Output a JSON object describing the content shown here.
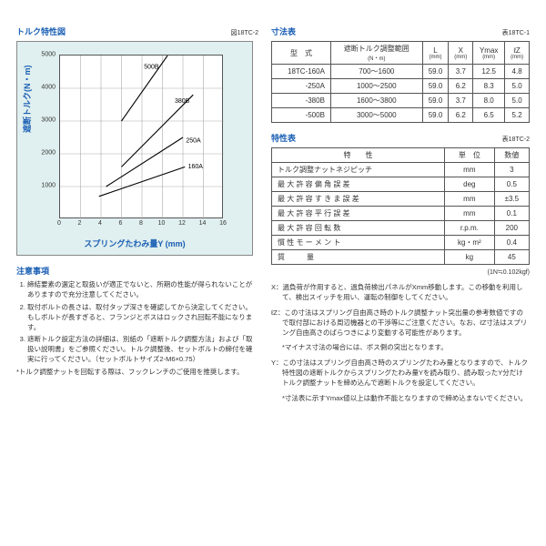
{
  "left": {
    "chart_title": "トルク特性図",
    "chart_tag": "図18TC-2",
    "ylabel": "遮断トルク(N・m)",
    "xlabel": "スプリングたわみ量Y (mm)",
    "plot": {
      "bg": "#e0efef",
      "grid_color": "#aaaaaa",
      "xlim": [
        0,
        16
      ],
      "xtick_step": 2,
      "ylim": [
        0,
        5000
      ],
      "ytick_step": 1000,
      "series": [
        {
          "label": "500B",
          "x1": 6.0,
          "y1": 3000,
          "x2": 10.5,
          "y2": 5000,
          "lx": 8.2,
          "ly": 4600
        },
        {
          "label": "380B",
          "x1": 6.0,
          "y1": 1600,
          "x2": 13.0,
          "y2": 3800,
          "lx": 11.2,
          "ly": 3550
        },
        {
          "label": "250A",
          "x1": 4.5,
          "y1": 1000,
          "x2": 12.0,
          "y2": 2500,
          "lx": 12.3,
          "ly": 2350
        },
        {
          "label": "160A",
          "x1": 3.8,
          "y1": 700,
          "x2": 12.2,
          "y2": 1600,
          "lx": 12.5,
          "ly": 1550
        }
      ]
    },
    "notes_title": "注意事項",
    "notes": [
      "締結要素の選定と取扱いが適正でないと、所期の性能が得られないことがありますので充分注意してください。",
      "取付ボルトの長さは、取付タップ深さを確認してから決定してください。もしボルトが長すぎると、フランジとボスはロックされ回転不能になります。",
      "遮断トルク設定方法の詳細は、別紙の「遮断トルク調整方法」および「取扱い説明書」をご参照ください。トルク調整後、セットボルトの締付を確実に行ってください。（セットボルトサイズ2-M6×0.75）"
    ],
    "notes_star": "*トルク調整ナットを回転する際は、フックレンチのご使用を推奨します。"
  },
  "dim": {
    "title": "寸法表",
    "tag": "表18TC-1",
    "headers": [
      {
        "main": "型　式",
        "sub": ""
      },
      {
        "main": "遮断トルク調整範囲",
        "sub": "(N・m)"
      },
      {
        "main": "L",
        "sub": "(mm)"
      },
      {
        "main": "X",
        "sub": "(mm)"
      },
      {
        "main": "Ymax",
        "sub": "(mm)"
      },
      {
        "main": "ℓZ",
        "sub": "(mm)"
      }
    ],
    "rows": [
      [
        "18TC-160A",
        "700～1600",
        "59.0",
        "3.7",
        "12.5",
        "4.8"
      ],
      [
        "-250A",
        "1000～2500",
        "59.0",
        "6.2",
        "8.3",
        "5.0"
      ],
      [
        "-380B",
        "1600～3800",
        "59.0",
        "3.7",
        "8.0",
        "5.0"
      ],
      [
        "-500B",
        "3000～5000",
        "59.0",
        "6.2",
        "6.5",
        "5.2"
      ]
    ]
  },
  "char": {
    "title": "特性表",
    "tag": "表18TC-2",
    "headers": [
      "特　　性",
      "単　位",
      "数値"
    ],
    "rows": [
      [
        "トルク調整ナットネジピッチ",
        "mm",
        "3"
      ],
      [
        "最 大 許 容 偏 角 誤 差",
        "deg",
        "0.5"
      ],
      [
        "最 大 許 容 す き ま 誤 差",
        "mm",
        "±3.5"
      ],
      [
        "最 大 許 容 平 行 誤 差",
        "mm",
        "0.1"
      ],
      [
        "最 大 許 容 回 転 数",
        "r.p.m.",
        "200"
      ],
      [
        "慣 性 モ ー メ ン ト",
        "kg・m²",
        "0.4"
      ],
      [
        "質　　　量",
        "kg",
        "45"
      ]
    ],
    "footnote": "(1N≒0.102kgf)"
  },
  "rnotes": {
    "x": "X：過負荷が作用すると、過負荷検出パネルがXmm移動します。この移動を利用して、検出スイッチを用い、運転の制御をしてください。",
    "z": "ℓZ：この寸法はスプリング自由高さ時のトルク調整ナット突出量の参考数値ですので取付部における周辺機器との干渉等にご注意ください。なお、ℓZ寸法はスプリング自由高さのばらつきにより変動する可能性があります。",
    "z_sub": "*マイナス寸法の場合には、ボス側の突出となります。",
    "y": "Y：この寸法はスプリング自由高さ時のスプリングたわみ量となりますので、トルク特性図の遮断トルクからスプリングたわみ量Yを読み取り、読み取ったY分だけトルク調整ナットを締め込んで遮断トルクを設定してください。",
    "y_sub": "*寸法表に示すYmax値以上は動作不能となりますので締め込まないでください。"
  }
}
